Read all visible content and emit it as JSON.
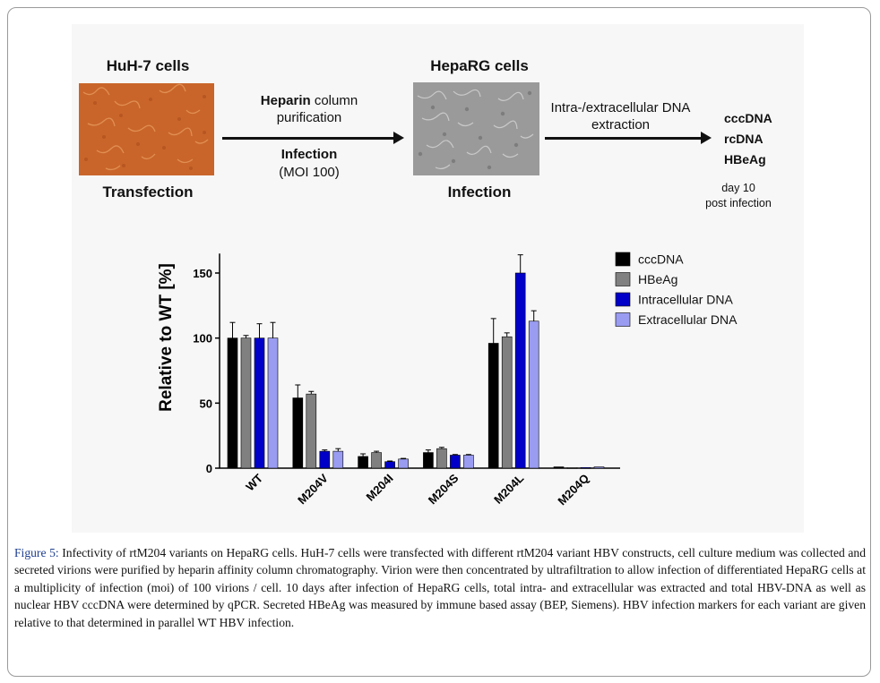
{
  "schematic": {
    "huh7_title": "HuH-7 cells",
    "huh7_label": "Transfection",
    "heparg_title": "HepaRG cells",
    "heparg_label": "Infection",
    "step1_line1_bold": "Heparin",
    "step1_line1_rest": " column",
    "step1_line2": "purification",
    "step1_line3": "Infection",
    "step1_line4": "(MOI 100)",
    "step2_line1": "Intra-/extracellular DNA",
    "step2_line2": "extraction",
    "outputs": [
      "cccDNA",
      "rcDNA",
      "HBeAg"
    ],
    "timepoint_line1": "day 10",
    "timepoint_line2": "post infection"
  },
  "chart_data": {
    "type": "bar",
    "ylabel": "Relative to WT [%]",
    "xlabel": "",
    "ylim": [
      0,
      165
    ],
    "yticks": [
      0,
      50,
      100,
      150
    ],
    "categories": [
      "WT",
      "M204V",
      "M204I",
      "M204S",
      "M204L",
      "M204Q"
    ],
    "series": [
      {
        "name": "cccDNA",
        "color": "#000000",
        "values": [
          100,
          54,
          9,
          12,
          96,
          1
        ],
        "errors": [
          12,
          10,
          2,
          2,
          19,
          0.3
        ]
      },
      {
        "name": "HBeAg",
        "color": "#808080",
        "values": [
          100,
          57,
          12,
          15,
          101,
          0.4
        ],
        "errors": [
          2,
          2,
          1,
          1,
          3,
          0.2
        ]
      },
      {
        "name": "Intracellular DNA",
        "color": "#0000c8",
        "values": [
          100,
          13,
          5,
          10,
          150,
          0.5
        ],
        "errors": [
          11,
          1,
          0.5,
          0.5,
          14,
          0.2
        ]
      },
      {
        "name": "Extracellular DNA",
        "color": "#9a9cf2",
        "values": [
          100,
          13,
          7,
          10,
          113,
          1
        ],
        "errors": [
          12,
          2,
          0.5,
          0.5,
          8,
          0.3
        ]
      }
    ],
    "legend_position": "top-right"
  },
  "caption": {
    "label": "Figure 5:",
    "text": " Infectivity of rtM204 variants on HepaRG cells. HuH-7 cells were transfected with different rtM204 variant HBV constructs, cell culture medium was collected and secreted virions were purified by heparin affinity column chromatography. Virion were then concentrated by ultrafiltration to allow infection of differentiated HepaRG cells at a multiplicity of infection (moi) of 100 virions / cell. 10 days after infection of HepaRG cells, total intra- and extracellular was extracted and total HBV-DNA as well as nuclear HBV cccDNA were determined by qPCR. Secreted HBeAg was measured by immune based assay (BEP, Siemens). HBV infection markers for each variant are given relative to that determined in parallel WT HBV infection."
  },
  "colors": {
    "huh7_micrograph": "#c9652a",
    "heparg_micrograph": "#9a9a9a",
    "caption_label": "#1f3f8f"
  }
}
